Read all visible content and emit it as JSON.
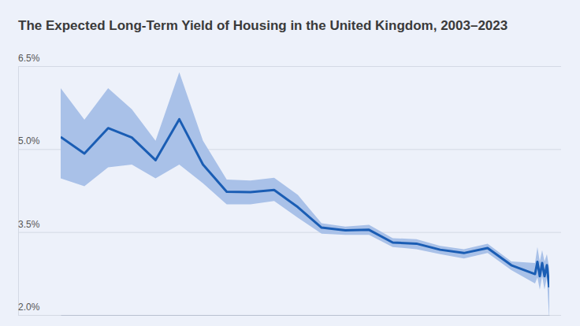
{
  "chart_data": {
    "type": "line",
    "title": "The Expected Long-Term Yield of Housing in the United Kingdom, 2003–2023",
    "x": [
      2003,
      2004,
      2005,
      2006,
      2007,
      2008,
      2009,
      2010,
      2011,
      2012,
      2013,
      2014,
      2015,
      2016,
      2017,
      2018,
      2019,
      2020,
      2021,
      2022,
      2023,
      2023.1,
      2023.2,
      2023.3,
      2023.4,
      2023.5,
      2023.6
    ],
    "values": [
      5.22,
      4.92,
      5.38,
      5.21,
      4.8,
      5.54,
      4.72,
      4.23,
      4.22,
      4.26,
      3.95,
      3.58,
      3.53,
      3.54,
      3.31,
      3.29,
      3.18,
      3.12,
      3.21,
      2.9,
      2.74,
      2.96,
      2.7,
      2.94,
      2.7,
      2.9,
      2.5
    ],
    "lower": [
      4.47,
      4.33,
      4.67,
      4.72,
      4.47,
      4.72,
      4.38,
      4.0,
      4.0,
      4.06,
      3.76,
      3.47,
      3.45,
      3.45,
      3.23,
      3.19,
      3.1,
      3.02,
      3.12,
      2.81,
      2.57,
      2.68,
      2.46,
      2.7,
      2.46,
      2.68,
      1.9
    ],
    "upper": [
      6.1,
      5.53,
      6.1,
      5.72,
      5.15,
      6.39,
      5.15,
      4.45,
      4.43,
      4.48,
      4.17,
      3.66,
      3.6,
      3.63,
      3.39,
      3.37,
      3.25,
      3.19,
      3.29,
      2.97,
      2.94,
      3.23,
      2.97,
      3.17,
      2.97,
      3.1,
      2.84
    ],
    "color": "#1a5db4",
    "xlim": [
      2003,
      2023.6
    ],
    "ylim": [
      2.0,
      6.5
    ],
    "yticks": [
      {
        "value": 2.0,
        "label": "2.0%"
      },
      {
        "value": 3.5,
        "label": "3.5%"
      },
      {
        "value": 5.0,
        "label": "5.0%"
      },
      {
        "value": 6.5,
        "label": "6.5%"
      }
    ],
    "grid": true,
    "tick_labels": "y"
  }
}
